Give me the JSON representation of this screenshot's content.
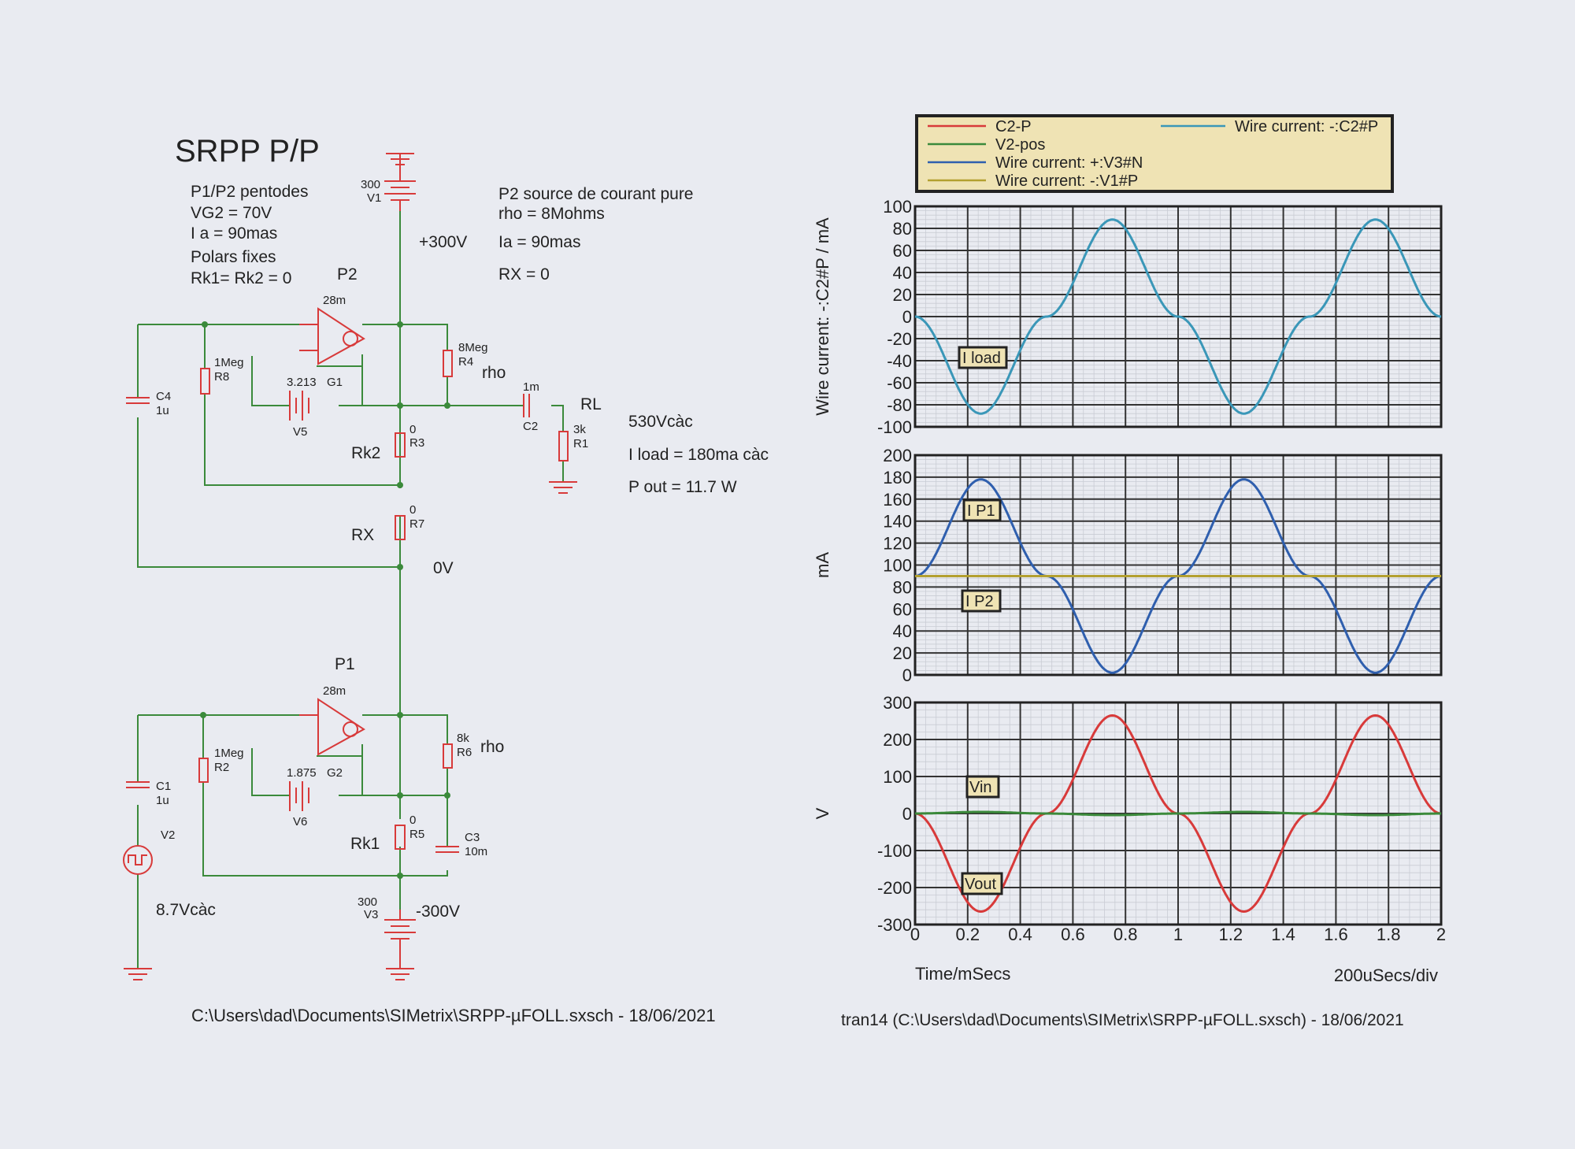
{
  "schematic": {
    "title": "SRPP P/P",
    "notes_left": [
      "P1/P2 pentodes",
      "VG2 = 70V",
      "I a = 90mas",
      "Polars fixes",
      "Rk1= Rk2 = 0"
    ],
    "notes_right": [
      "P2 source de courant pure",
      "rho = 8Mohms",
      "Ia = 90mas",
      "RX = 0"
    ],
    "notes_load": [
      "530Vcàc",
      "I load = 180ma càc",
      "P out = 11.7 W"
    ],
    "labels": {
      "p2": "P2",
      "p1": "P1",
      "v1_val": "300",
      "v1": "V1",
      "plus300": "+300V",
      "g1_cap": "28m",
      "g2_cap": "28m",
      "r8_val": "1Meg",
      "r8": "R8",
      "c4": "C4",
      "c4_val": "1u",
      "r4_val": "8Meg",
      "r4": "R4",
      "rho1": "rho",
      "v5_val": "3.213",
      "g1": "G1",
      "v5": "V5",
      "c2_val": "1m",
      "c2": "C2",
      "rl": "RL",
      "r1_val": "3k",
      "r1": "R1",
      "r3_val": "0",
      "r3": "R3",
      "rk2": "Rk2",
      "r7_val": "0",
      "r7": "R7",
      "rx": "RX",
      "zero_v": "0V",
      "r2_val": "1Meg",
      "r2": "R2",
      "c1": "C1",
      "c1_val": "1u",
      "v2": "V2",
      "vin_amp": "8.7Vcàc",
      "r6_val": "8k",
      "r6": "R6",
      "rho2": "rho",
      "v6_val": "1.875",
      "g2": "G2",
      "v6": "V6",
      "r5_val": "0",
      "r5": "R5",
      "rk1": "Rk1",
      "c3": "C3",
      "c3_val": "10m",
      "v3_val": "300",
      "v3": "V3",
      "minus300": "-300V"
    },
    "footer": "C:\\Users\\dad\\Documents\\SIMetrix\\SRPP-µFOLL.sxsch - 18/06/2021"
  },
  "plot": {
    "legend": [
      "C2-P",
      "V2-pos",
      "Wire current: +:V3#N",
      "Wire current: -:V1#P",
      "Wire current: -:C2#P"
    ],
    "colors": {
      "red": "#d83a3a",
      "green": "#3b8a3b",
      "blue": "#2f5fae",
      "olive": "#b3a030",
      "cyan": "#3a97b8"
    },
    "flags": {
      "iload": "I load",
      "ip1": "I P1",
      "ip2": "I P2",
      "vin": "Vin",
      "vout": "Vout"
    },
    "xlabel": "Time/mSecs",
    "xdiv": "200uSecs/div",
    "footer": "tran14 (C:\\Users\\dad\\Documents\\SIMetrix\\SRPP-µFOLL.sxsch) - 18/06/2021"
  },
  "chart_data": [
    {
      "type": "line",
      "ylabel": "Wire current: -:C2#P / mA",
      "xlim": [
        0,
        2
      ],
      "ylim": [
        -100,
        100
      ],
      "x_ticks": [
        0,
        0.2,
        0.4,
        0.6,
        0.8,
        1,
        1.2,
        1.4,
        1.6,
        1.8,
        2
      ],
      "y_ticks": [
        100,
        80,
        60,
        40,
        20,
        0,
        -20,
        -40,
        -60,
        -80,
        -100
      ],
      "grid": true,
      "series": [
        {
          "name": "Wire current: -:C2#P",
          "color": "#3a97b8",
          "x": [
            0,
            0.25,
            0.5,
            0.75,
            1,
            1.25,
            1.5,
            1.75,
            2
          ],
          "y": [
            0,
            -88,
            0,
            88,
            0,
            -88,
            0,
            88,
            0
          ]
        }
      ]
    },
    {
      "type": "line",
      "ylabel": "mA",
      "xlim": [
        0,
        2
      ],
      "ylim": [
        0,
        200
      ],
      "y_ticks": [
        200,
        180,
        160,
        140,
        120,
        100,
        80,
        60,
        40,
        20,
        0
      ],
      "grid": true,
      "series": [
        {
          "name": "Wire current: +:V3#N",
          "color": "#2f5fae",
          "x": [
            0,
            0.25,
            0.5,
            0.75,
            1,
            1.25,
            1.5,
            1.75,
            2
          ],
          "y": [
            90,
            178,
            90,
            2,
            90,
            178,
            90,
            2,
            90
          ]
        },
        {
          "name": "Wire current: -:V1#P",
          "color": "#b3a030",
          "x": [
            0,
            2
          ],
          "y": [
            90,
            90
          ]
        }
      ]
    },
    {
      "type": "line",
      "ylabel": "V",
      "xlim": [
        0,
        2
      ],
      "ylim": [
        -300,
        300
      ],
      "y_ticks": [
        300,
        200,
        100,
        0,
        -100,
        -200,
        -300
      ],
      "grid": true,
      "series": [
        {
          "name": "C2-P",
          "color": "#d83a3a",
          "x": [
            0,
            0.25,
            0.5,
            0.75,
            1,
            1.25,
            1.5,
            1.75,
            2
          ],
          "y": [
            0,
            -265,
            0,
            265,
            0,
            -265,
            0,
            265,
            0
          ]
        },
        {
          "name": "V2-pos",
          "color": "#3b8a3b",
          "x": [
            0,
            0.25,
            0.5,
            0.75,
            1,
            1.25,
            1.5,
            1.75,
            2
          ],
          "y": [
            0,
            4.35,
            0,
            -4.35,
            0,
            4.35,
            0,
            -4.35,
            0
          ]
        }
      ]
    }
  ]
}
